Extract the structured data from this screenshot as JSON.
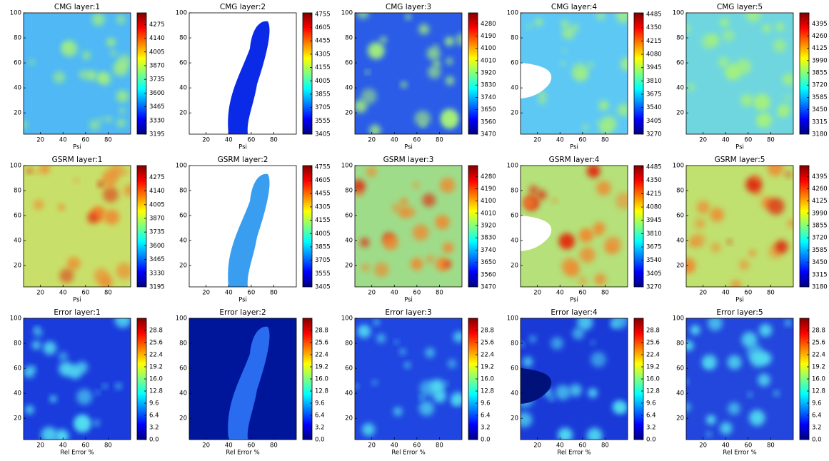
{
  "chart_data": [
    {
      "type": "heatmap",
      "title": "CMG layer:1",
      "xlabel": "Psi",
      "xlim": [
        5,
        100
      ],
      "ylim": [
        3,
        100
      ],
      "xticks": [
        20,
        40,
        60,
        80
      ],
      "yticks": [
        20,
        40,
        60,
        80,
        100
      ],
      "colormap": "jet",
      "zlim": [
        3195,
        4390
      ],
      "zticks": [
        3195,
        3330,
        3465,
        3600,
        3735,
        3870,
        4005,
        4140,
        4275
      ]
    },
    {
      "type": "heatmap",
      "title": "CMG layer:2",
      "xlabel": "Psi",
      "xlim": [
        5,
        100
      ],
      "ylim": [
        3,
        100
      ],
      "xticks": [
        20,
        40,
        60,
        80
      ],
      "yticks": [
        20,
        40,
        60,
        80,
        100
      ],
      "colormap": "jet",
      "zlim": [
        3405,
        4770
      ],
      "zticks": [
        3405,
        3555,
        3705,
        3855,
        4005,
        4155,
        4305,
        4455,
        4605,
        4755
      ]
    },
    {
      "type": "heatmap",
      "title": "CMG layer:3",
      "xlabel": "Psi",
      "xlim": [
        5,
        100
      ],
      "ylim": [
        3,
        100
      ],
      "xticks": [
        20,
        40,
        60,
        80
      ],
      "yticks": [
        20,
        40,
        60,
        80,
        100
      ],
      "colormap": "jet",
      "zlim": [
        3470,
        4360
      ],
      "zticks": [
        3470,
        3560,
        3650,
        3740,
        3830,
        3920,
        4010,
        4100,
        4190,
        4280
      ]
    },
    {
      "type": "heatmap",
      "title": "CMG layer:4",
      "xlabel": "Psi",
      "xlim": [
        5,
        100
      ],
      "ylim": [
        3,
        100
      ],
      "xticks": [
        20,
        40,
        60,
        80
      ],
      "yticks": [
        20,
        40,
        60,
        80,
        100
      ],
      "colormap": "jet",
      "zlim": [
        3270,
        4500
      ],
      "zticks": [
        3270,
        3405,
        3540,
        3675,
        3810,
        3945,
        4080,
        4215,
        4350,
        4485
      ]
    },
    {
      "type": "heatmap",
      "title": "CMG layer:5",
      "xlabel": "Psi",
      "xlim": [
        5,
        100
      ],
      "ylim": [
        3,
        100
      ],
      "xticks": [
        20,
        40,
        60,
        80
      ],
      "yticks": [
        20,
        40,
        60,
        80,
        100
      ],
      "colormap": "jet",
      "zlim": [
        3180,
        4515
      ],
      "zticks": [
        3180,
        3315,
        3450,
        3585,
        3720,
        3855,
        3990,
        4125,
        4260,
        4395
      ]
    },
    {
      "type": "heatmap",
      "title": "GSRM layer:1",
      "xlabel": "Psi",
      "xlim": [
        5,
        100
      ],
      "ylim": [
        3,
        100
      ],
      "xticks": [
        20,
        40,
        60,
        80
      ],
      "yticks": [
        20,
        40,
        60,
        80,
        100
      ],
      "colormap": "jet",
      "zlim": [
        3195,
        4390
      ],
      "zticks": [
        3195,
        3330,
        3465,
        3600,
        3735,
        3870,
        4005,
        4140,
        4275
      ]
    },
    {
      "type": "heatmap",
      "title": "GSRM layer:2",
      "xlabel": "Psi",
      "xlim": [
        5,
        100
      ],
      "ylim": [
        3,
        100
      ],
      "xticks": [
        20,
        40,
        60,
        80
      ],
      "yticks": [
        20,
        40,
        60,
        80,
        100
      ],
      "colormap": "jet",
      "zlim": [
        3405,
        4770
      ],
      "zticks": [
        3405,
        3555,
        3705,
        3855,
        4005,
        4155,
        4305,
        4455,
        4605,
        4755
      ]
    },
    {
      "type": "heatmap",
      "title": "GSRM layer:3",
      "xlabel": "Psi",
      "xlim": [
        5,
        100
      ],
      "ylim": [
        3,
        100
      ],
      "xticks": [
        20,
        40,
        60,
        80
      ],
      "yticks": [
        20,
        40,
        60,
        80,
        100
      ],
      "colormap": "jet",
      "zlim": [
        3470,
        4360
      ],
      "zticks": [
        3470,
        3560,
        3650,
        3740,
        3830,
        3920,
        4010,
        4100,
        4190,
        4280
      ]
    },
    {
      "type": "heatmap",
      "title": "GSRM layer:4",
      "xlabel": "Psi",
      "xlim": [
        5,
        100
      ],
      "ylim": [
        3,
        100
      ],
      "xticks": [
        20,
        40,
        60,
        80
      ],
      "yticks": [
        20,
        40,
        60,
        80,
        100
      ],
      "colormap": "jet",
      "zlim": [
        3270,
        4500
      ],
      "zticks": [
        3270,
        3405,
        3540,
        3675,
        3810,
        3945,
        4080,
        4215,
        4350,
        4485
      ]
    },
    {
      "type": "heatmap",
      "title": "GSRM layer:5",
      "xlabel": "Psi",
      "xlim": [
        5,
        100
      ],
      "ylim": [
        3,
        100
      ],
      "xticks": [
        20,
        40,
        60,
        80
      ],
      "yticks": [
        20,
        40,
        60,
        80,
        100
      ],
      "colormap": "jet",
      "zlim": [
        3180,
        4515
      ],
      "zticks": [
        3180,
        3315,
        3450,
        3585,
        3720,
        3855,
        3990,
        4125,
        4260,
        4395
      ]
    },
    {
      "type": "heatmap",
      "title": "Error layer:1",
      "xlabel": "Rel Error %",
      "xlim": [
        5,
        100
      ],
      "ylim": [
        3,
        100
      ],
      "xticks": [
        20,
        40,
        60,
        80
      ],
      "yticks": [
        20,
        40,
        60,
        80,
        100
      ],
      "colormap": "jet",
      "zlim": [
        0,
        32
      ],
      "zticks": [
        {
          "value": 0,
          "label": "0.0"
        },
        3.2,
        6.4,
        9.6,
        12.8,
        {
          "value": 16,
          "label": "16.0"
        },
        19.2,
        22.4,
        25.6,
        28.8
      ]
    },
    {
      "type": "heatmap",
      "title": "Error layer:2",
      "xlabel": "Rel Error %",
      "xlim": [
        5,
        100
      ],
      "ylim": [
        3,
        100
      ],
      "xticks": [
        20,
        40,
        60,
        80
      ],
      "yticks": [
        20,
        40,
        60,
        80,
        100
      ],
      "colormap": "jet",
      "zlim": [
        0,
        32
      ],
      "zticks": [
        {
          "value": 0,
          "label": "0.0"
        },
        3.2,
        6.4,
        9.6,
        12.8,
        {
          "value": 16,
          "label": "16.0"
        },
        19.2,
        22.4,
        25.6,
        28.8
      ]
    },
    {
      "type": "heatmap",
      "title": "Error layer:3",
      "xlabel": "Rel Error %",
      "xlim": [
        5,
        100
      ],
      "ylim": [
        3,
        100
      ],
      "xticks": [
        20,
        40,
        60,
        80
      ],
      "yticks": [
        20,
        40,
        60,
        80,
        100
      ],
      "colormap": "jet",
      "zlim": [
        0,
        32
      ],
      "zticks": [
        {
          "value": 0,
          "label": "0.0"
        },
        3.2,
        6.4,
        9.6,
        12.8,
        {
          "value": 16,
          "label": "16.0"
        },
        19.2,
        22.4,
        25.6,
        28.8
      ]
    },
    {
      "type": "heatmap",
      "title": "Error layer:4",
      "xlabel": "Rel Error %",
      "xlim": [
        5,
        100
      ],
      "ylim": [
        3,
        100
      ],
      "xticks": [
        20,
        40,
        60,
        80
      ],
      "yticks": [
        20,
        40,
        60,
        80,
        100
      ],
      "colormap": "jet",
      "zlim": [
        0,
        32
      ],
      "zticks": [
        {
          "value": 0,
          "label": "0.0"
        },
        3.2,
        6.4,
        9.6,
        12.8,
        {
          "value": 16,
          "label": "16.0"
        },
        19.2,
        22.4,
        25.6,
        28.8
      ]
    },
    {
      "type": "heatmap",
      "title": "Error layer:5",
      "xlabel": "Rel Error %",
      "xlim": [
        5,
        100
      ],
      "ylim": [
        3,
        100
      ],
      "xticks": [
        20,
        40,
        60,
        80
      ],
      "yticks": [
        20,
        40,
        60,
        80,
        100
      ],
      "colormap": "jet",
      "zlim": [
        0,
        32
      ],
      "zticks": [
        {
          "value": 0,
          "label": "0.0"
        },
        3.2,
        6.4,
        9.6,
        12.8,
        {
          "value": 16,
          "label": "16.0"
        },
        19.2,
        22.4,
        25.6,
        28.8
      ]
    }
  ]
}
